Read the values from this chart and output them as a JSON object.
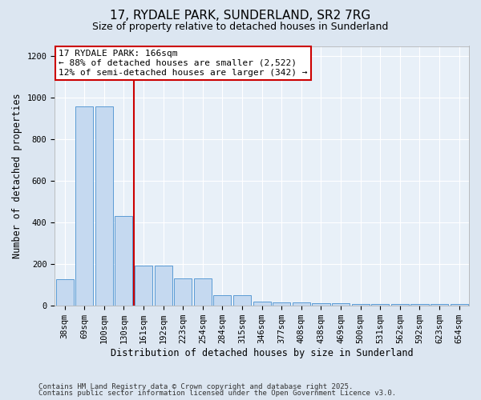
{
  "title_line1": "17, RYDALE PARK, SUNDERLAND, SR2 7RG",
  "title_line2": "Size of property relative to detached houses in Sunderland",
  "xlabel": "Distribution of detached houses by size in Sunderland",
  "ylabel": "Number of detached properties",
  "categories": [
    "38sqm",
    "69sqm",
    "100sqm",
    "130sqm",
    "161sqm",
    "192sqm",
    "223sqm",
    "254sqm",
    "284sqm",
    "315sqm",
    "346sqm",
    "377sqm",
    "408sqm",
    "438sqm",
    "469sqm",
    "500sqm",
    "531sqm",
    "562sqm",
    "592sqm",
    "623sqm",
    "654sqm"
  ],
  "values": [
    125,
    960,
    960,
    430,
    190,
    190,
    130,
    130,
    50,
    50,
    20,
    15,
    15,
    10,
    10,
    5,
    5,
    5,
    5,
    5,
    5
  ],
  "bar_color": "#c5d9f0",
  "bar_edge_color": "#5b9bd5",
  "red_line_index": 4,
  "annotation_title": "17 RYDALE PARK: 166sqm",
  "annotation_line2": "← 88% of detached houses are smaller (2,522)",
  "annotation_line3": "12% of semi-detached houses are larger (342) →",
  "annotation_box_color": "#cc0000",
  "annotation_bg": "#ffffff",
  "ylim": [
    0,
    1250
  ],
  "yticks": [
    0,
    200,
    400,
    600,
    800,
    1000,
    1200
  ],
  "footer_line1": "Contains HM Land Registry data © Crown copyright and database right 2025.",
  "footer_line2": "Contains public sector information licensed under the Open Government Licence v3.0.",
  "bg_color": "#dce6f1",
  "plot_bg_color": "#e8f0f8",
  "grid_color": "#ffffff",
  "title_fontsize": 11,
  "subtitle_fontsize": 9,
  "axis_label_fontsize": 8.5,
  "tick_fontsize": 7.5,
  "annotation_fontsize": 8,
  "footer_fontsize": 6.5
}
